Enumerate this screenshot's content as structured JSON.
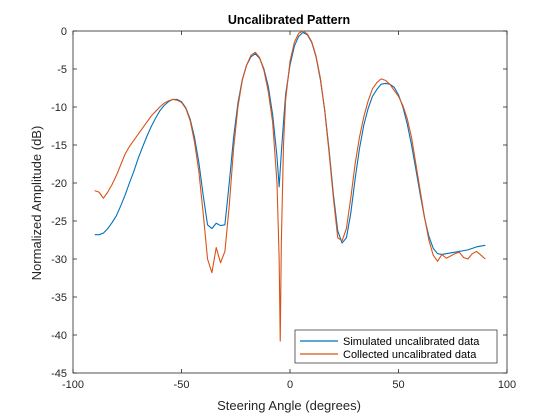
{
  "chart_data": {
    "type": "line",
    "title": "Uncalibrated Pattern",
    "xlabel": "Steering Angle (degrees)",
    "ylabel": "Normalized Amplitude (dB)",
    "xlim": [
      -100,
      100
    ],
    "ylim": [
      -45,
      0
    ],
    "xticks": [
      -100,
      -50,
      0,
      50,
      100
    ],
    "yticks": [
      0,
      -5,
      -10,
      -15,
      -20,
      -25,
      -30,
      -35,
      -40,
      -45
    ],
    "grid": false,
    "legend_position": "bottom-right",
    "series": [
      {
        "name": "Simulated uncalibrated data",
        "color": "#0072BD",
        "x": [
          -90,
          -88,
          -86,
          -84,
          -82,
          -80,
          -78,
          -76,
          -74,
          -72,
          -70,
          -68,
          -66,
          -64,
          -62,
          -60,
          -58,
          -56,
          -54,
          -52,
          -50,
          -48,
          -46,
          -44,
          -42,
          -40,
          -38,
          -36,
          -34,
          -32,
          -30,
          -28,
          -26,
          -24,
          -22,
          -20,
          -18,
          -16,
          -14,
          -12,
          -10,
          -8,
          -6,
          -5,
          -4,
          -3,
          -2,
          0,
          2,
          4,
          6,
          8,
          10,
          12,
          14,
          16,
          18,
          20,
          22,
          24,
          26,
          28,
          30,
          32,
          34,
          36,
          38,
          40,
          42,
          44,
          46,
          48,
          50,
          52,
          54,
          56,
          58,
          60,
          62,
          64,
          66,
          68,
          70,
          72,
          74,
          76,
          78,
          80,
          82,
          84,
          86,
          88,
          90
        ],
        "y": [
          -26.8,
          -26.8,
          -26.6,
          -26.0,
          -25.2,
          -24.3,
          -23.0,
          -21.6,
          -20.0,
          -18.5,
          -16.8,
          -15.3,
          -13.9,
          -12.6,
          -11.5,
          -10.5,
          -9.8,
          -9.3,
          -9.0,
          -9.0,
          -9.3,
          -10.1,
          -11.6,
          -14.0,
          -17.3,
          -21.6,
          -25.5,
          -26.0,
          -25.3,
          -25.6,
          -25.5,
          -20.0,
          -14.0,
          -9.5,
          -6.4,
          -4.5,
          -3.4,
          -3.0,
          -3.6,
          -5.0,
          -7.3,
          -11.0,
          -16.5,
          -20.5,
          -16.0,
          -12.0,
          -8.3,
          -4.5,
          -2.0,
          -0.7,
          -0.2,
          -0.5,
          -1.5,
          -3.4,
          -6.4,
          -10.4,
          -15.6,
          -21.5,
          -26.3,
          -27.9,
          -27.2,
          -24.0,
          -19.5,
          -15.5,
          -12.4,
          -10.2,
          -8.6,
          -7.7,
          -7.0,
          -6.9,
          -7.0,
          -7.4,
          -8.4,
          -10.0,
          -12.2,
          -15.0,
          -18.2,
          -21.5,
          -24.6,
          -27.0,
          -28.6,
          -29.3,
          -29.4,
          -29.3,
          -29.2,
          -29.1,
          -29.0,
          -28.9,
          -28.8,
          -28.6,
          -28.4,
          -28.3,
          -28.2
        ]
      },
      {
        "name": "Collected uncalibrated data",
        "color": "#D95319",
        "x": [
          -90,
          -88,
          -86,
          -84,
          -82,
          -80,
          -78,
          -76,
          -74,
          -72,
          -70,
          -68,
          -66,
          -64,
          -62,
          -60,
          -58,
          -56,
          -54,
          -52,
          -50,
          -48,
          -46,
          -44,
          -42,
          -40,
          -38,
          -36,
          -34,
          -32,
          -30,
          -28,
          -26,
          -24,
          -22,
          -20,
          -18,
          -16,
          -14,
          -12,
          -10,
          -8,
          -6,
          -5,
          -4.5,
          -4,
          -3,
          -2,
          0,
          2,
          4,
          6,
          8,
          10,
          12,
          14,
          16,
          18,
          20,
          22,
          24,
          26,
          28,
          30,
          32,
          34,
          36,
          38,
          40,
          42,
          44,
          46,
          48,
          50,
          52,
          54,
          56,
          58,
          60,
          62,
          64,
          66,
          68,
          70,
          72,
          74,
          76,
          78,
          80,
          82,
          84,
          86,
          88,
          90
        ],
        "y": [
          -21.0,
          -21.2,
          -22.0,
          -21.2,
          -20.2,
          -19.0,
          -17.6,
          -16.2,
          -15.2,
          -14.4,
          -13.6,
          -12.8,
          -12.0,
          -11.2,
          -10.6,
          -10.0,
          -9.5,
          -9.2,
          -9.0,
          -9.1,
          -9.4,
          -10.2,
          -11.8,
          -14.6,
          -18.5,
          -24.0,
          -30.0,
          -31.8,
          -28.5,
          -30.5,
          -29.0,
          -23.0,
          -15.5,
          -10.0,
          -6.5,
          -4.5,
          -3.2,
          -2.8,
          -3.5,
          -5.2,
          -8.0,
          -12.0,
          -20.0,
          -30.0,
          -40.8,
          -28.0,
          -15.0,
          -9.0,
          -4.0,
          -1.5,
          -0.3,
          0.0,
          -0.4,
          -1.4,
          -3.3,
          -6.2,
          -10.5,
          -16.0,
          -22.0,
          -27.2,
          -27.6,
          -26.0,
          -22.0,
          -17.5,
          -14.0,
          -11.3,
          -9.2,
          -7.6,
          -6.8,
          -6.3,
          -6.5,
          -7.0,
          -7.8,
          -8.6,
          -9.8,
          -11.5,
          -14.0,
          -17.5,
          -21.0,
          -24.5,
          -27.5,
          -29.5,
          -30.3,
          -29.4,
          -29.9,
          -29.6,
          -29.3,
          -29.1,
          -29.8,
          -30.0,
          -29.3,
          -29.0,
          -29.5,
          -30.0
        ]
      }
    ]
  }
}
